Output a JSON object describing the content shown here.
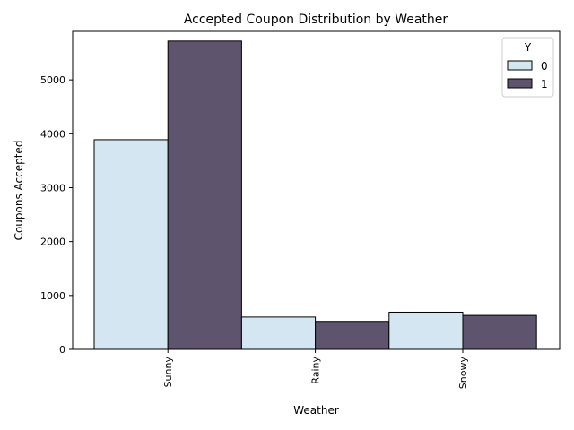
{
  "chart_data": {
    "type": "bar",
    "title": "Accepted Coupon Distribution by Weather",
    "xlabel": "Weather",
    "ylabel": "Coupons Accepted",
    "categories": [
      "Sunny",
      "Rainy",
      "Snowy"
    ],
    "series": [
      {
        "name": "0",
        "values": [
          3890,
          600,
          690
        ],
        "color": "#d4e6f1"
      },
      {
        "name": "1",
        "values": [
          5720,
          520,
          630
        ],
        "color": "#5f546d"
      }
    ],
    "ylim": [
      0,
      5900
    ],
    "yticks": [
      0,
      1000,
      2000,
      3000,
      4000,
      5000
    ],
    "ytick_labels": [
      "0",
      "1000",
      "2000",
      "3000",
      "4000",
      "5000"
    ],
    "grid": false,
    "legend": {
      "title": "Y",
      "placement": "top-right"
    }
  }
}
